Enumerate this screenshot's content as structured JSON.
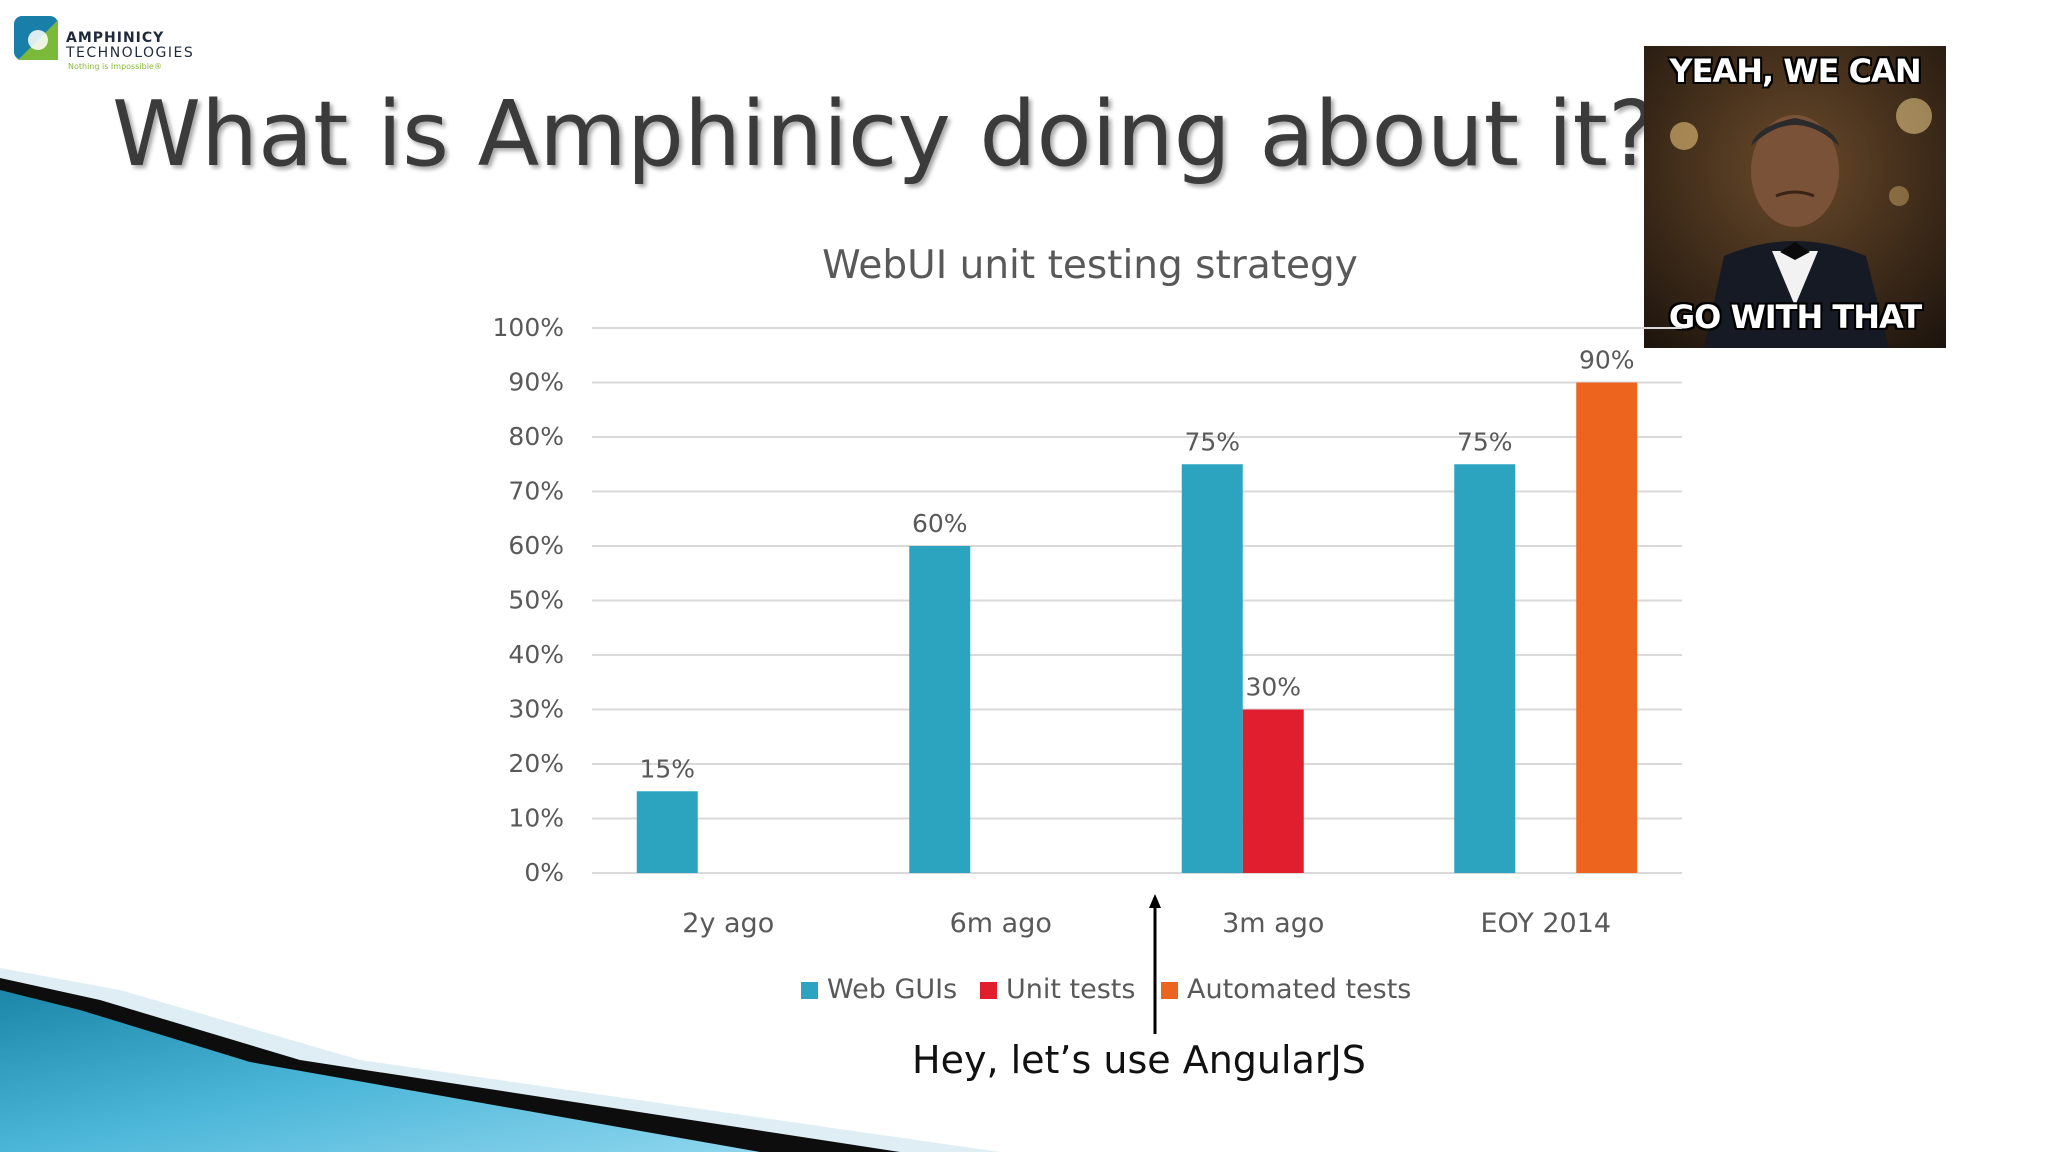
{
  "logo": {
    "line1": "AMPHINICY",
    "line2": "TECHNOLOGIES",
    "tagline": "Nothing is Impossible®"
  },
  "page_title": "What is Amphinicy doing about it?",
  "meme": {
    "top_text": "YEAH, WE CAN",
    "bottom_text": "GO WITH THAT"
  },
  "annotation": {
    "text": "Hey, let’s use AngularJS",
    "arrow_icon": "up-arrow-icon"
  },
  "colors": {
    "web_guis": "#2ca4c0",
    "unit_tests": "#e01e2e",
    "automated_tests": "#ec641e",
    "grid": "#d9d9d9",
    "axis_text": "#595959"
  },
  "chart_data": {
    "type": "bar",
    "title": "WebUI unit testing strategy",
    "xlabel": "",
    "ylabel": "",
    "categories": [
      "2y ago",
      "6m ago",
      "3m ago",
      "EOY 2014"
    ],
    "series": [
      {
        "name": "Web GUIs",
        "values": [
          15,
          60,
          75,
          75
        ]
      },
      {
        "name": "Unit tests",
        "values": [
          null,
          null,
          30,
          null
        ]
      },
      {
        "name": "Automated tests",
        "values": [
          null,
          null,
          null,
          90
        ]
      }
    ],
    "data_labels": [
      "15%",
      "60%",
      "75%",
      "75%",
      "30%",
      "90%"
    ],
    "yticks": [
      "0%",
      "10%",
      "20%",
      "30%",
      "40%",
      "50%",
      "60%",
      "70%",
      "80%",
      "90%",
      "100%"
    ],
    "ylim": [
      0,
      100
    ],
    "grid": true,
    "legend": "bottom"
  }
}
